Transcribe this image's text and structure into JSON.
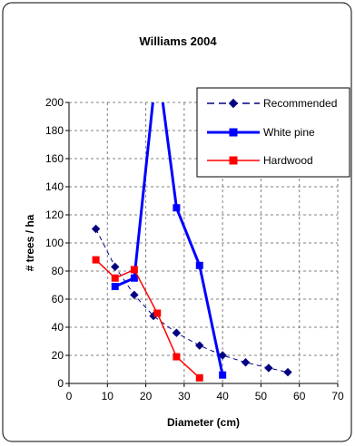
{
  "chart_data": {
    "type": "line",
    "title": "Williams 2004",
    "xlabel": "Diameter (cm)",
    "ylabel": "# trees / ha",
    "xlim": [
      0,
      70
    ],
    "ylim": [
      0,
      200
    ],
    "xticks": [
      "0",
      "10",
      "20",
      "30",
      "40",
      "50",
      "60",
      "70"
    ],
    "yticks": [
      "0",
      "20",
      "40",
      "60",
      "80",
      "100",
      "120",
      "140",
      "160",
      "180",
      "200"
    ],
    "grid": true,
    "legend_position": "top-right",
    "series": [
      {
        "name": "Recommended",
        "color": "#000080",
        "line_style": "dashed",
        "marker": "diamond",
        "x": [
          7,
          12,
          17,
          22,
          28,
          34,
          40,
          46,
          52,
          57
        ],
        "y": [
          110,
          83,
          63,
          48,
          36,
          27,
          20,
          15,
          11,
          8
        ]
      },
      {
        "name": "White pine",
        "color": "#0000FF",
        "line_style": "solid",
        "marker": "square",
        "x": [
          12,
          17,
          23,
          28,
          34,
          40
        ],
        "y": [
          69,
          75,
          230,
          125,
          84,
          6
        ]
      },
      {
        "name": "Hardwood",
        "color": "#FF0000",
        "line_style": "solid",
        "marker": "square",
        "x": [
          7,
          12,
          17,
          23,
          28,
          34
        ],
        "y": [
          88,
          75,
          81,
          50,
          19,
          4
        ]
      }
    ]
  }
}
